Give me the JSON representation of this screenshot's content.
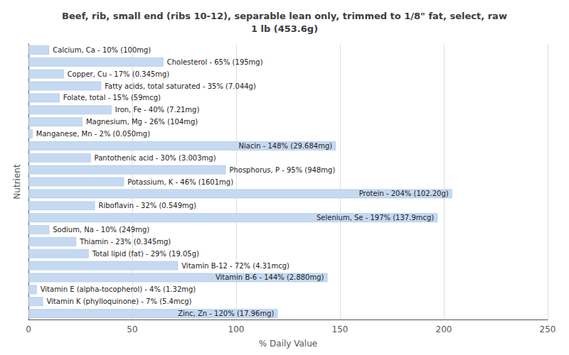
{
  "chart_data": {
    "type": "bar",
    "orientation": "horizontal",
    "title": "Beef, rib, small end (ribs 10-12), separable lean only, trimmed to 1/8\" fat, select, raw\n1 lb (453.6g)",
    "xlabel": "% Daily Value",
    "ylabel": "Nutrient",
    "categories": [
      "Calcium, Ca - 10% (100mg)",
      "Cholesterol - 65% (195mg)",
      "Copper, Cu - 17% (0.345mg)",
      "Fatty acids, total saturated - 35% (7.044g)",
      "Folate, total - 15% (59mcg)",
      "Iron, Fe - 40% (7.21mg)",
      "Magnesium, Mg - 26% (104mg)",
      "Manganese, Mn - 2% (0.050mg)",
      "Niacin - 148% (29.684mg)",
      "Pantothenic acid - 30% (3.003mg)",
      "Phosphorus, P - 95% (948mg)",
      "Potassium, K - 46% (1601mg)",
      "Protein - 204% (102.20g)",
      "Riboflavin - 32% (0.549mg)",
      "Selenium, Se - 197% (137.9mcg)",
      "Sodium, Na - 10% (249mg)",
      "Thiamin - 23% (0.345mg)",
      "Total lipid (fat) - 29% (19.05g)",
      "Vitamin B-12 - 72% (4.31mcg)",
      "Vitamin B-6 - 144% (2.880mg)",
      "Vitamin E (alpha-tocopherol) - 4% (1.32mg)",
      "Vitamin K (phylloquinone) - 7% (5.4mcg)",
      "Zinc, Zn - 120% (17.96mg)"
    ],
    "values": [
      10,
      65,
      17,
      35,
      15,
      40,
      26,
      2,
      148,
      30,
      95,
      46,
      204,
      32,
      197,
      10,
      23,
      29,
      72,
      144,
      4,
      7,
      120
    ],
    "color": "#c5d9f1",
    "xlim": [
      0,
      250
    ],
    "xticks": [
      0,
      50,
      100,
      150,
      200,
      250
    ],
    "grid": true,
    "tick_labels": "x"
  }
}
